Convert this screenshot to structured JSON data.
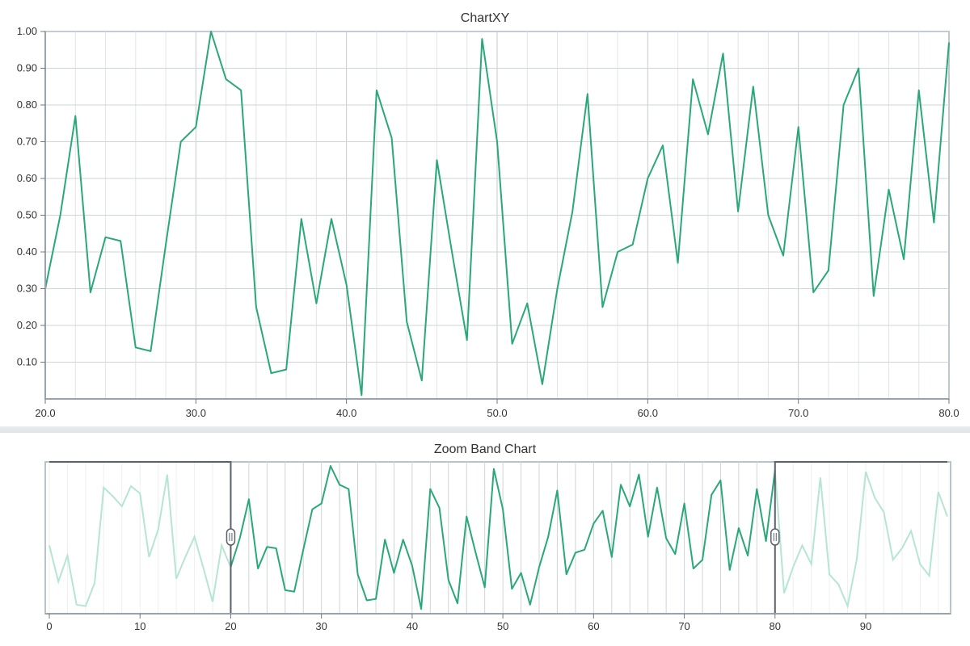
{
  "colors": {
    "series": "#2aa87a",
    "series_faded": "#b5e6d2",
    "grid": "#d2d6da",
    "band_frame": "#5a6168",
    "axis": "#9aa3ab"
  },
  "chart_data": [
    {
      "type": "line",
      "title": "ChartXY",
      "xlim": [
        20,
        80
      ],
      "ylim": [
        0,
        1.0
      ],
      "x_ticks": [
        "20.0",
        "30.0",
        "40.0",
        "50.0",
        "60.0",
        "70.0",
        "80.0"
      ],
      "y_ticks": [
        "0.10",
        "0.20",
        "0.30",
        "0.40",
        "0.50",
        "0.60",
        "0.70",
        "0.80",
        "0.90",
        "1.00"
      ],
      "grid": true,
      "series": [
        {
          "x": [
            20,
            21,
            22,
            23,
            24,
            25,
            26,
            27,
            28,
            29,
            30,
            31,
            32,
            33,
            34,
            35,
            36,
            37,
            38,
            39,
            40,
            41,
            42,
            43,
            44,
            45,
            46,
            47,
            48,
            49,
            50,
            51,
            52,
            53,
            54,
            55,
            56,
            57,
            58,
            59,
            60,
            61,
            62,
            63,
            64,
            65,
            66,
            67,
            68,
            69,
            70,
            71,
            72,
            73,
            74,
            75,
            76,
            77,
            78,
            79,
            80
          ],
          "y": [
            0.3,
            0.5,
            0.77,
            0.29,
            0.44,
            0.43,
            0.14,
            0.13,
            0.42,
            0.7,
            0.74,
            1.0,
            0.87,
            0.84,
            0.25,
            0.07,
            0.08,
            0.49,
            0.26,
            0.49,
            0.31,
            0.01,
            0.84,
            0.71,
            0.21,
            0.05,
            0.65,
            0.4,
            0.16,
            0.98,
            0.7,
            0.15,
            0.26,
            0.04,
            0.3,
            0.51,
            0.83,
            0.25,
            0.4,
            0.42,
            0.6,
            0.69,
            0.37,
            0.87,
            0.72,
            0.94,
            0.51,
            0.85,
            0.5,
            0.39,
            0.74,
            0.29,
            0.35,
            0.8,
            0.9,
            0.28,
            0.57,
            0.38,
            0.84,
            0.48,
            0.97
          ]
        }
      ]
    },
    {
      "type": "line",
      "title": "Zoom Band Chart",
      "xlim": [
        0,
        99
      ],
      "x_ticks": [
        "0",
        "10",
        "20",
        "30",
        "40",
        "50",
        "60",
        "70",
        "80",
        "90"
      ],
      "band_range": [
        20,
        80
      ],
      "series": [
        {
          "x": [
            0,
            1,
            2,
            3,
            4,
            5,
            6,
            7,
            8,
            9,
            10,
            11,
            12,
            13,
            14,
            15,
            16,
            17,
            18,
            19,
            20,
            21,
            22,
            23,
            24,
            25,
            26,
            27,
            28,
            29,
            30,
            31,
            32,
            33,
            34,
            35,
            36,
            37,
            38,
            39,
            40,
            41,
            42,
            43,
            44,
            45,
            46,
            47,
            48,
            49,
            50,
            51,
            52,
            53,
            54,
            55,
            56,
            57,
            58,
            59,
            60,
            61,
            62,
            63,
            64,
            65,
            66,
            67,
            68,
            69,
            70,
            71,
            72,
            73,
            74,
            75,
            76,
            77,
            78,
            79,
            80,
            81,
            82,
            83,
            84,
            85,
            86,
            87,
            88,
            89,
            90,
            91,
            92,
            93,
            94,
            95,
            96,
            97,
            98,
            99
          ],
          "y": [
            0.45,
            0.2,
            0.38,
            0.04,
            0.03,
            0.19,
            0.85,
            0.79,
            0.72,
            0.86,
            0.81,
            0.37,
            0.56,
            0.94,
            0.22,
            0.37,
            0.51,
            0.29,
            0.06,
            0.45,
            0.3,
            0.5,
            0.77,
            0.29,
            0.44,
            0.43,
            0.14,
            0.13,
            0.42,
            0.7,
            0.74,
            1.0,
            0.87,
            0.84,
            0.25,
            0.07,
            0.08,
            0.49,
            0.26,
            0.49,
            0.31,
            0.01,
            0.84,
            0.71,
            0.21,
            0.05,
            0.65,
            0.4,
            0.16,
            0.98,
            0.7,
            0.15,
            0.26,
            0.04,
            0.3,
            0.51,
            0.83,
            0.25,
            0.4,
            0.42,
            0.6,
            0.69,
            0.37,
            0.87,
            0.72,
            0.94,
            0.51,
            0.85,
            0.5,
            0.39,
            0.74,
            0.29,
            0.35,
            0.8,
            0.9,
            0.28,
            0.57,
            0.38,
            0.84,
            0.48,
            0.97,
            0.12,
            0.3,
            0.45,
            0.32,
            0.92,
            0.25,
            0.18,
            0.03,
            0.35,
            0.96,
            0.78,
            0.68,
            0.35,
            0.43,
            0.55,
            0.32,
            0.24,
            0.82,
            0.65
          ]
        }
      ]
    }
  ]
}
